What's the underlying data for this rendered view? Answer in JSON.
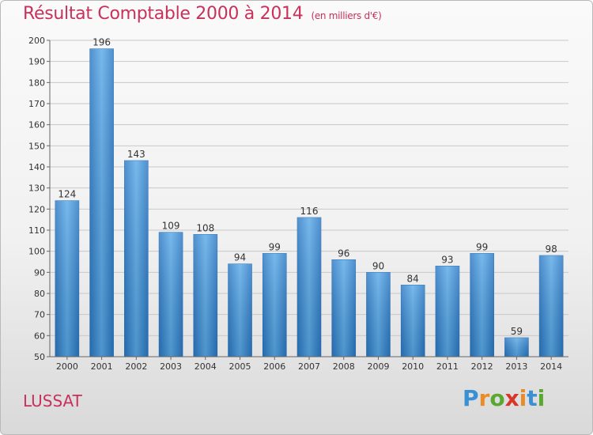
{
  "chart_data": {
    "type": "bar",
    "title": "Résultat Comptable 2000 à 2014",
    "subtitle": "(en milliers d'€)",
    "categories": [
      "2000",
      "2001",
      "2002",
      "2003",
      "2004",
      "2005",
      "2006",
      "2007",
      "2008",
      "2009",
      "2010",
      "2011",
      "2012",
      "2013",
      "2014"
    ],
    "values": [
      124,
      196,
      143,
      109,
      108,
      94,
      99,
      116,
      96,
      90,
      84,
      93,
      99,
      59,
      98
    ],
    "ylim": [
      50,
      200
    ],
    "yticks": [
      50,
      60,
      70,
      80,
      90,
      100,
      110,
      120,
      130,
      140,
      150,
      160,
      170,
      180,
      190,
      200
    ],
    "grid": true,
    "bar_color": "#3f8fd6"
  },
  "location": "LUSSAT",
  "logo": {
    "letters": [
      "P",
      "r",
      "o",
      "x",
      "i",
      "t",
      "i"
    ],
    "colors": [
      "#3b8fd4",
      "#e98b2a",
      "#5aa832",
      "#d9362b",
      "#e98b2a",
      "#3b8fd4",
      "#5aa832"
    ]
  }
}
